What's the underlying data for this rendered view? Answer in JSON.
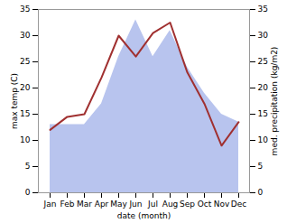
{
  "chart_data": {
    "type": "line",
    "categories": [
      "Jan",
      "Feb",
      "Mar",
      "Apr",
      "May",
      "Jun",
      "Jul",
      "Aug",
      "Sep",
      "Oct",
      "Nov",
      "Dec"
    ],
    "series": [
      {
        "type": "area",
        "color": "#b8c4ee",
        "axis": "y2",
        "values": [
          13.0,
          13.0,
          13.0,
          17.0,
          26.0,
          33.0,
          26.0,
          31.0,
          24.0,
          19.0,
          15.0,
          13.5
        ]
      },
      {
        "type": "line",
        "color": "#a03030",
        "values": [
          12.0,
          14.5,
          15.0,
          22.0,
          30.0,
          26.0,
          30.5,
          32.5,
          23.0,
          17.0,
          9.0,
          13.5
        ]
      }
    ],
    "xlabel": "date (month)",
    "ylabel": "max temp (C)",
    "y2label": "med. precipitation (kg/m2)",
    "ylim": [
      0,
      35
    ],
    "yticks": [
      0,
      5,
      10,
      15,
      20,
      25,
      30,
      35
    ],
    "y2lim": [
      0,
      35
    ],
    "y2ticks": [
      0,
      5,
      10,
      15,
      20,
      25,
      30,
      35
    ],
    "grid": false
  }
}
